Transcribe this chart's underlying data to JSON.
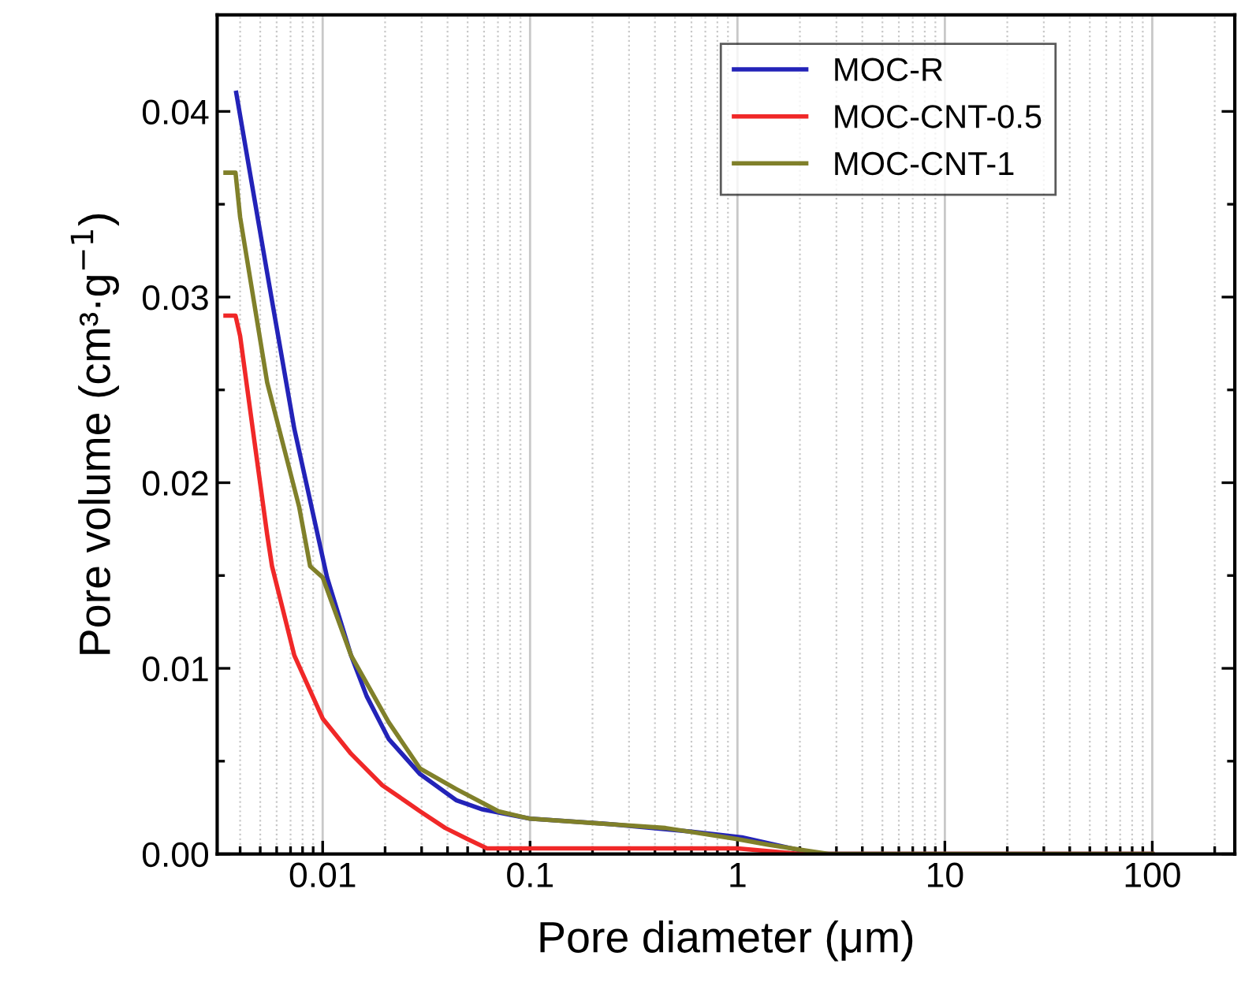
{
  "chart_data": {
    "type": "line",
    "xlabel": "Pore diameter (μm)",
    "ylabel": "Pore volume (cm³·g$^{−1}$)",
    "log": "x",
    "grid": "x",
    "legend": "top right",
    "line_style": "solid",
    "xlim": [
      0.0031,
      250
    ],
    "ylim": [
      0,
      0.0452
    ],
    "xticks": [
      {
        "value": 0.004,
        "label": null
      },
      {
        "value": 0.005,
        "label": null
      },
      {
        "value": 0.006,
        "label": null
      },
      {
        "value": 0.007,
        "label": null
      },
      {
        "value": 0.008,
        "label": null
      },
      {
        "value": 0.009,
        "label": null
      },
      {
        "value": 0.01,
        "label": "0.01"
      },
      {
        "value": 0.02,
        "label": null
      },
      {
        "value": 0.03,
        "label": null
      },
      {
        "value": 0.04,
        "label": null
      },
      {
        "value": 0.05,
        "label": null
      },
      {
        "value": 0.06,
        "label": null
      },
      {
        "value": 0.07,
        "label": null
      },
      {
        "value": 0.08,
        "label": null
      },
      {
        "value": 0.09,
        "label": null
      },
      {
        "value": 0.1,
        "label": "0.1"
      },
      {
        "value": 0.2,
        "label": null
      },
      {
        "value": 0.3,
        "label": null
      },
      {
        "value": 0.4,
        "label": null
      },
      {
        "value": 0.5,
        "label": null
      },
      {
        "value": 0.6,
        "label": null
      },
      {
        "value": 0.7,
        "label": null
      },
      {
        "value": 0.8,
        "label": null
      },
      {
        "value": 0.9,
        "label": null
      },
      {
        "value": 1,
        "label": "1"
      },
      {
        "value": 2,
        "label": null
      },
      {
        "value": 3,
        "label": null
      },
      {
        "value": 4,
        "label": null
      },
      {
        "value": 5,
        "label": null
      },
      {
        "value": 6,
        "label": null
      },
      {
        "value": 7,
        "label": null
      },
      {
        "value": 8,
        "label": null
      },
      {
        "value": 9,
        "label": null
      },
      {
        "value": 10,
        "label": "10"
      },
      {
        "value": 20,
        "label": null
      },
      {
        "value": 30,
        "label": null
      },
      {
        "value": 40,
        "label": null
      },
      {
        "value": 50,
        "label": null
      },
      {
        "value": 60,
        "label": null
      },
      {
        "value": 70,
        "label": null
      },
      {
        "value": 80,
        "label": null
      },
      {
        "value": 90,
        "label": null
      },
      {
        "value": 100,
        "label": "100"
      },
      {
        "value": 200,
        "label": null
      }
    ],
    "yticks": [
      {
        "value": 0,
        "label": "0.00"
      },
      {
        "value": 0.005,
        "label": null
      },
      {
        "value": 0.01,
        "label": "0.01"
      },
      {
        "value": 0.015,
        "label": null
      },
      {
        "value": 0.02,
        "label": "0.02"
      },
      {
        "value": 0.025,
        "label": null
      },
      {
        "value": 0.03,
        "label": "0.03"
      },
      {
        "value": 0.035,
        "label": null
      },
      {
        "value": 0.04,
        "label": "0.04"
      }
    ],
    "series": [
      {
        "name": "MOC-R",
        "color": "#2323b8",
        "x": [
          0.00383,
          0.0054,
          0.0073,
          0.0105,
          0.0137,
          0.0163,
          0.0208,
          0.0295,
          0.044,
          0.059,
          0.1,
          0.25,
          0.6,
          1.05,
          2.0,
          2.5,
          100
        ],
        "values": [
          0.041,
          0.0313,
          0.0229,
          0.0149,
          0.0107,
          0.0085,
          0.0062,
          0.0043,
          0.0029,
          0.0024,
          0.0019,
          0.0016,
          0.0012,
          0.0009,
          0.0002,
          0,
          0
        ]
      },
      {
        "name": "MOC-CNT-0.5",
        "color": "#f02828",
        "x": [
          0.0034,
          0.0038,
          0.004,
          0.0046,
          0.0054,
          0.0057,
          0.0073,
          0.01,
          0.0137,
          0.0194,
          0.0295,
          0.039,
          0.05,
          0.062,
          1.0,
          2.0,
          100
        ],
        "values": [
          0.029,
          0.029,
          0.0279,
          0.0229,
          0.0172,
          0.0155,
          0.0107,
          0.0073,
          0.0054,
          0.0037,
          0.0023,
          0.0014,
          0.0008,
          0.0003,
          0.0003,
          0,
          0
        ]
      },
      {
        "name": "MOC-CNT-1",
        "color": "#80802a",
        "x": [
          0.0034,
          0.0038,
          0.004,
          0.0054,
          0.0077,
          0.0087,
          0.01,
          0.0137,
          0.0208,
          0.0295,
          0.044,
          0.0705,
          0.1,
          0.45,
          1.0,
          1.4,
          2.75,
          100
        ],
        "values": [
          0.0367,
          0.0367,
          0.0343,
          0.0254,
          0.0187,
          0.0155,
          0.0149,
          0.0107,
          0.0071,
          0.0046,
          0.0035,
          0.0023,
          0.0019,
          0.0014,
          0.0008,
          0.0005,
          0,
          0
        ]
      }
    ]
  }
}
